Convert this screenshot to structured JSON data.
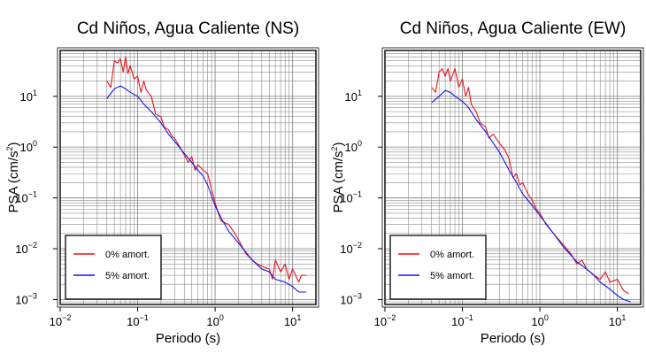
{
  "colors": {
    "series_0": "#e8141c",
    "series_5": "#1414e8",
    "grid": "#8c8c8c",
    "frame": "#000000"
  },
  "chart_data": [
    {
      "type": "line",
      "title": "Cd Niños, Agua Caliente (NS)",
      "xlabel": "Periodo (s)",
      "ylabel_main": "PSA (cm/s",
      "ylabel_sup": "2",
      "ylabel_close": ")",
      "xscale": "log",
      "yscale": "log",
      "xlim": [
        0.01,
        20
      ],
      "ylim": [
        0.0008,
        80
      ],
      "grid": true,
      "legend_position": "bottom-left",
      "x_ticks": [
        {
          "value": 0.01,
          "base": "10",
          "exp": "−2"
        },
        {
          "value": 0.1,
          "base": "10",
          "exp": "−1"
        },
        {
          "value": 1,
          "base": "10",
          "exp": "0"
        },
        {
          "value": 10,
          "base": "10",
          "exp": "1"
        }
      ],
      "y_ticks": [
        {
          "value": 0.001,
          "base": "10",
          "exp": "−3"
        },
        {
          "value": 0.01,
          "base": "10",
          "exp": "−2"
        },
        {
          "value": 0.1,
          "base": "10",
          "exp": "−1"
        },
        {
          "value": 1,
          "base": "10",
          "exp": "0"
        },
        {
          "value": 10,
          "base": "10",
          "exp": "1"
        }
      ],
      "series": [
        {
          "name": "0% amort.",
          "color": "#e8141c",
          "points": [
            [
              0.04,
              20
            ],
            [
              0.045,
              15
            ],
            [
              0.05,
              50
            ],
            [
              0.055,
              45
            ],
            [
              0.06,
              55
            ],
            [
              0.065,
              30
            ],
            [
              0.07,
              60
            ],
            [
              0.075,
              28
            ],
            [
              0.08,
              40
            ],
            [
              0.09,
              22
            ],
            [
              0.1,
              25
            ],
            [
              0.11,
              12
            ],
            [
              0.12,
              20
            ],
            [
              0.13,
              13
            ],
            [
              0.15,
              10
            ],
            [
              0.17,
              4.5
            ],
            [
              0.2,
              4
            ],
            [
              0.22,
              2.5
            ],
            [
              0.25,
              2.2
            ],
            [
              0.28,
              1.6
            ],
            [
              0.3,
              1.5
            ],
            [
              0.35,
              1.0
            ],
            [
              0.4,
              0.7
            ],
            [
              0.45,
              0.5
            ],
            [
              0.5,
              0.65
            ],
            [
              0.55,
              0.35
            ],
            [
              0.6,
              0.45
            ],
            [
              0.7,
              0.35
            ],
            [
              0.8,
              0.3
            ],
            [
              0.9,
              0.15
            ],
            [
              1.0,
              0.08
            ],
            [
              1.1,
              0.05
            ],
            [
              1.2,
              0.035
            ],
            [
              1.5,
              0.03
            ],
            [
              1.8,
              0.02
            ],
            [
              2.0,
              0.015
            ],
            [
              2.5,
              0.008
            ],
            [
              3.0,
              0.006
            ],
            [
              3.5,
              0.005
            ],
            [
              4.0,
              0.0045
            ],
            [
              5.0,
              0.004
            ],
            [
              5.5,
              0.0025
            ],
            [
              6.0,
              0.006
            ],
            [
              7.0,
              0.0035
            ],
            [
              8.0,
              0.005
            ],
            [
              9.0,
              0.0025
            ],
            [
              10.0,
              0.004
            ],
            [
              12.0,
              0.0022
            ],
            [
              13.0,
              0.003
            ],
            [
              15.0,
              0.003
            ]
          ]
        },
        {
          "name": "5% amort.",
          "color": "#1414e8",
          "points": [
            [
              0.04,
              9
            ],
            [
              0.05,
              14
            ],
            [
              0.06,
              16
            ],
            [
              0.07,
              14
            ],
            [
              0.08,
              12
            ],
            [
              0.1,
              10
            ],
            [
              0.12,
              7
            ],
            [
              0.15,
              5
            ],
            [
              0.2,
              3
            ],
            [
              0.25,
              1.8
            ],
            [
              0.3,
              1.3
            ],
            [
              0.4,
              0.75
            ],
            [
              0.5,
              0.5
            ],
            [
              0.6,
              0.35
            ],
            [
              0.7,
              0.27
            ],
            [
              0.8,
              0.18
            ],
            [
              1.0,
              0.07
            ],
            [
              1.2,
              0.04
            ],
            [
              1.5,
              0.022
            ],
            [
              2.0,
              0.013
            ],
            [
              3.0,
              0.006
            ],
            [
              4.0,
              0.004
            ],
            [
              5.0,
              0.0035
            ],
            [
              6.0,
              0.0025
            ],
            [
              8.0,
              0.0022
            ],
            [
              10.0,
              0.0018
            ],
            [
              12.0,
              0.0014
            ],
            [
              15.0,
              0.0014
            ]
          ]
        }
      ]
    },
    {
      "type": "line",
      "title": "Cd Niños, Agua Caliente (EW)",
      "xlabel": "Periodo (s)",
      "ylabel_main": "PSA (cm/s",
      "ylabel_sup": "2",
      "ylabel_close": ")",
      "xscale": "log",
      "yscale": "log",
      "xlim": [
        0.01,
        20
      ],
      "ylim": [
        0.0008,
        80
      ],
      "grid": true,
      "legend_position": "bottom-left",
      "x_ticks": [
        {
          "value": 0.01,
          "base": "10",
          "exp": "−2"
        },
        {
          "value": 0.1,
          "base": "10",
          "exp": "−1"
        },
        {
          "value": 1,
          "base": "10",
          "exp": "0"
        },
        {
          "value": 10,
          "base": "10",
          "exp": "1"
        }
      ],
      "y_ticks": [
        {
          "value": 0.001,
          "base": "10",
          "exp": "−3"
        },
        {
          "value": 0.01,
          "base": "10",
          "exp": "−2"
        },
        {
          "value": 0.1,
          "base": "10",
          "exp": "−1"
        },
        {
          "value": 1,
          "base": "10",
          "exp": "0"
        },
        {
          "value": 10,
          "base": "10",
          "exp": "1"
        }
      ],
      "series": [
        {
          "name": "0% amort.",
          "color": "#e8141c",
          "points": [
            [
              0.04,
              15
            ],
            [
              0.045,
              12
            ],
            [
              0.05,
              30
            ],
            [
              0.055,
              35
            ],
            [
              0.06,
              25
            ],
            [
              0.065,
              35
            ],
            [
              0.07,
              20
            ],
            [
              0.08,
              35
            ],
            [
              0.09,
              15
            ],
            [
              0.1,
              22
            ],
            [
              0.11,
              10
            ],
            [
              0.12,
              15
            ],
            [
              0.13,
              7
            ],
            [
              0.15,
              5
            ],
            [
              0.17,
              3
            ],
            [
              0.2,
              2.5
            ],
            [
              0.22,
              1.5
            ],
            [
              0.25,
              1.8
            ],
            [
              0.3,
              1.2
            ],
            [
              0.35,
              0.9
            ],
            [
              0.4,
              0.6
            ],
            [
              0.45,
              0.25
            ],
            [
              0.5,
              0.3
            ],
            [
              0.55,
              0.18
            ],
            [
              0.6,
              0.2
            ],
            [
              0.7,
              0.12
            ],
            [
              0.8,
              0.09
            ],
            [
              0.9,
              0.06
            ],
            [
              1.0,
              0.05
            ],
            [
              1.2,
              0.03
            ],
            [
              1.5,
              0.02
            ],
            [
              2.0,
              0.012
            ],
            [
              2.5,
              0.008
            ],
            [
              3.0,
              0.005
            ],
            [
              3.5,
              0.006
            ],
            [
              4.0,
              0.004
            ],
            [
              5.0,
              0.003
            ],
            [
              6.0,
              0.0025
            ],
            [
              7.0,
              0.0035
            ],
            [
              8.0,
              0.0022
            ],
            [
              10.0,
              0.0025
            ],
            [
              12.0,
              0.0015
            ],
            [
              14.0,
              0.0013
            ]
          ]
        },
        {
          "name": "5% amort.",
          "color": "#1414e8",
          "points": [
            [
              0.04,
              7.5
            ],
            [
              0.05,
              10
            ],
            [
              0.06,
              13
            ],
            [
              0.07,
              12
            ],
            [
              0.08,
              10
            ],
            [
              0.1,
              8
            ],
            [
              0.12,
              6
            ],
            [
              0.15,
              3.5
            ],
            [
              0.2,
              2
            ],
            [
              0.25,
              1.2
            ],
            [
              0.3,
              0.8
            ],
            [
              0.4,
              0.35
            ],
            [
              0.5,
              0.2
            ],
            [
              0.6,
              0.12
            ],
            [
              0.8,
              0.07
            ],
            [
              1.0,
              0.045
            ],
            [
              1.5,
              0.02
            ],
            [
              2.0,
              0.011
            ],
            [
              3.0,
              0.0055
            ],
            [
              4.0,
              0.004
            ],
            [
              5.0,
              0.003
            ],
            [
              6.0,
              0.0022
            ],
            [
              8.0,
              0.0016
            ],
            [
              10.0,
              0.0012
            ],
            [
              12.0,
              0.001
            ],
            [
              15.0,
              0.0009
            ]
          ]
        }
      ]
    }
  ]
}
